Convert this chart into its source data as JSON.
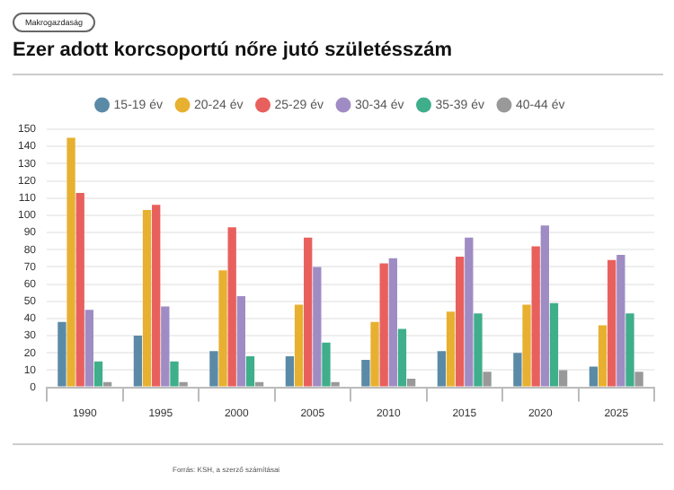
{
  "chart_data": {
    "type": "bar",
    "title": "Ezer adott korcsoportú nőre jutó születésszám",
    "subtitle": "Makrogazdaság",
    "annotations": [
      "Forrás: KSH, a szerző számításai"
    ],
    "categories": [
      "1990",
      "1995",
      "2000",
      "2005",
      "2010",
      "2015",
      "2020",
      "2025"
    ],
    "series": [
      {
        "name": "15-19 év",
        "color": "#5b8aa6",
        "values": [
          38,
          30,
          21,
          18,
          16,
          21,
          20,
          12
        ]
      },
      {
        "name": "20-24 év",
        "color": "#e8b030",
        "values": [
          145,
          103,
          68,
          48,
          38,
          44,
          48,
          36
        ]
      },
      {
        "name": "25-29 év",
        "color": "#e8605d",
        "values": [
          113,
          106,
          93,
          87,
          72,
          76,
          82,
          74
        ]
      },
      {
        "name": "30-34 év",
        "color": "#a08cc4",
        "values": [
          45,
          47,
          53,
          70,
          75,
          87,
          94,
          77
        ]
      },
      {
        "name": "35-39 év",
        "color": "#3fae8a",
        "values": [
          15,
          15,
          18,
          26,
          34,
          43,
          49,
          43
        ]
      },
      {
        "name": "40-44 év",
        "color": "#999999",
        "values": [
          3,
          3,
          3,
          3,
          5,
          9,
          10,
          9
        ]
      }
    ],
    "ylim": [
      0,
      150
    ],
    "yticks": [
      0,
      10,
      20,
      30,
      40,
      50,
      60,
      70,
      80,
      90,
      100,
      110,
      120,
      130,
      140,
      150
    ],
    "grid": "y",
    "legend": "top"
  }
}
